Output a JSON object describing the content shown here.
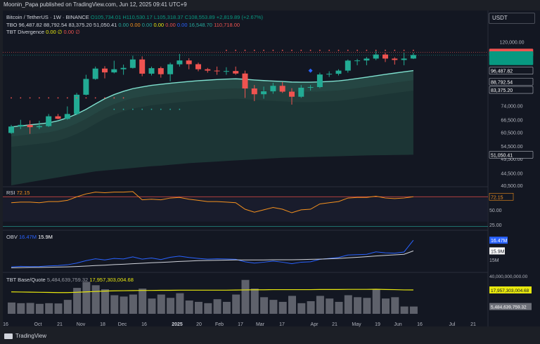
{
  "header": {
    "published": "Moonin_Papa published on TradingView.com, Jun 12, 2025 09:41 UTC+9"
  },
  "currency_button": "USDT",
  "legend": {
    "symbol": "Bitcoin / TetherUS · 1W · BINANCE",
    "o": "O105,734.01",
    "h": "H110,530.17",
    "l": "L105,318.37",
    "c": "C108,553.89",
    "chg": "+2,819.89 (+2.67%)",
    "tbo_name": "TBO",
    "tbo_vals": [
      "96,487.82",
      "88,792.54",
      "83,375.20",
      "51,050.41",
      "0.00",
      "0.00",
      "0.00",
      "0.00",
      "0.00",
      "0.00",
      "16,548.70",
      "110,718.00"
    ],
    "div_name": "TBT Divergence",
    "div_vals": [
      "0.00",
      "∅",
      "0.00",
      "∅"
    ],
    "rsi_name": "RSI",
    "rsi_val": "72.15",
    "obv_name": "OBV",
    "obv_val1": "16.47M",
    "obv_val2": "15.9M",
    "bq_name": "TBT Base/Quote",
    "bq_val1": "5,484,639,759.32",
    "bq_val2": "17,957,303,004.68"
  },
  "colors": {
    "up": "#26a69a",
    "down": "#ef5350",
    "upfill": "#22ab94",
    "ma": "#7fe0cf",
    "rsi": "#f5911e",
    "obv": "#2962ff",
    "obv_ma": "#d1d4dc",
    "bq": "#e8e80e",
    "vol": "#6c6f78"
  },
  "price_axis": [
    "120,000.00",
    "74,000.00",
    "66,500.00",
    "60,500.00",
    "54,500.00",
    "49,500.00",
    "44,500.00",
    "40,500.00"
  ],
  "price_labels": [
    {
      "text": "110,718.00",
      "color": "#ef5350"
    },
    {
      "text": "108,553.89",
      "color": "#089981"
    },
    {
      "text": "4d 0h",
      "color": "#089981"
    },
    {
      "text": "96,487.82",
      "color": "#ffffff"
    },
    {
      "text": "88,792.54",
      "color": "#ffffff"
    },
    {
      "text": "83,375.20",
      "color": "#ffffff"
    },
    {
      "text": "51,050.41",
      "color": "#ffffff"
    }
  ],
  "rsi_axis": [
    "72.15",
    "50.00",
    "25.00"
  ],
  "obv_axis": [
    "16.47M",
    "15.9M",
    "15M"
  ],
  "bq_axis": [
    "40,000,000,000.00",
    "17,957,303,004.68",
    "5,484,639,759.32"
  ],
  "x_axis": [
    "16",
    "Oct",
    "21",
    "Nov",
    "18",
    "Dec",
    "16",
    "2025",
    "20",
    "Feb",
    "17",
    "Mar",
    "17",
    "Apr",
    "21",
    "May",
    "19",
    "Jun",
    "16",
    "Jul",
    "21"
  ],
  "branding": "TradingView",
  "chart_data": {
    "type": "candlestick",
    "interval": "1W",
    "log_scale": true,
    "candles": [
      [
        60200,
        64000,
        59800,
        63200
      ],
      [
        63200,
        66500,
        62000,
        64000
      ],
      [
        64000,
        66200,
        59800,
        62900
      ],
      [
        62900,
        66000,
        62000,
        63400
      ],
      [
        63400,
        69500,
        63000,
        68300
      ],
      [
        68300,
        69500,
        66800,
        67000
      ],
      [
        67000,
        73600,
        66500,
        69500
      ],
      [
        69500,
        81500,
        69000,
        80400
      ],
      [
        80400,
        93500,
        80000,
        90600
      ],
      [
        90600,
        99500,
        90000,
        98000
      ],
      [
        98000,
        99800,
        91000,
        95200
      ],
      [
        95200,
        104000,
        94500,
        97500
      ],
      [
        97500,
        101000,
        93500,
        98500
      ],
      [
        98500,
        108000,
        98000,
        105000
      ],
      [
        105000,
        107500,
        92500,
        94300
      ],
      [
        94300,
        99500,
        93000,
        98300
      ],
      [
        98300,
        99500,
        91500,
        93900
      ],
      [
        93900,
        102500,
        89000,
        101200
      ],
      [
        101200,
        109500,
        99500,
        104200
      ],
      [
        104200,
        106000,
        97500,
        101300
      ],
      [
        101300,
        102500,
        96000,
        97500
      ],
      [
        97500,
        98500,
        95000,
        96500
      ],
      [
        96500,
        99500,
        93500,
        96100
      ],
      [
        96100,
        99000,
        93500,
        96200
      ],
      [
        96200,
        99500,
        93500,
        94400
      ],
      [
        94400,
        96500,
        78500,
        84300
      ],
      [
        84300,
        86500,
        76600,
        80700
      ],
      [
        80700,
        85500,
        78000,
        82500
      ],
      [
        82500,
        88000,
        81000,
        86000
      ],
      [
        86000,
        88500,
        81500,
        82300
      ],
      [
        82300,
        84500,
        74600,
        79200
      ],
      [
        79200,
        86500,
        78500,
        84800
      ],
      [
        84800,
        86500,
        83000,
        85200
      ],
      [
        85200,
        95000,
        84500,
        93700
      ],
      [
        93700,
        96000,
        92000,
        94200
      ],
      [
        94200,
        97500,
        93000,
        96500
      ],
      [
        96500,
        105000,
        95000,
        104100
      ],
      [
        104100,
        105500,
        100500,
        104200
      ],
      [
        104200,
        107000,
        100500,
        105700
      ],
      [
        105700,
        111900,
        104500,
        109000
      ],
      [
        109000,
        110500,
        103000,
        105700
      ],
      [
        105700,
        106800,
        101000,
        104600
      ],
      [
        104600,
        110400,
        100500,
        105700
      ],
      [
        105734,
        110530,
        105318,
        108554
      ]
    ],
    "tbo_fast": [
      63000,
      63500,
      64000,
      64500,
      65000,
      66000,
      67500,
      69500,
      72000,
      75000,
      78000,
      80500,
      82500,
      84200,
      85300,
      86300,
      87000,
      87700,
      88300,
      88900,
      89400,
      89800,
      90200,
      90500,
      90700,
      90400,
      89900,
      89500,
      89200,
      88900,
      88500,
      88400,
      88400,
      88600,
      88900,
      89300,
      90000,
      90900,
      91800,
      92800,
      93800,
      94700,
      95600,
      96487
    ],
    "band_low": [
      40500,
      41000,
      41500,
      42000,
      42500,
      43000,
      43500,
      44000,
      44500,
      45000,
      45300,
      45600,
      45900,
      46200,
      46500,
      46800,
      47000,
      47300,
      47600,
      47900,
      48100,
      48300,
      48500,
      48700,
      48900,
      49100,
      49300,
      49500,
      49700,
      49900,
      50000,
      50100,
      50200,
      50300,
      50400,
      50500,
      50600,
      50700,
      50800,
      50850,
      50900,
      50950,
      51000,
      51050
    ],
    "rsi": [
      62,
      63,
      63,
      62,
      64,
      64,
      66,
      72,
      77,
      80,
      79,
      80,
      80,
      81,
      67,
      68,
      67,
      70,
      71,
      68,
      66,
      64,
      64,
      63,
      62,
      51,
      46,
      50,
      54,
      51,
      45,
      50,
      51,
      60,
      62,
      64,
      70,
      71,
      71,
      73,
      70,
      69,
      70,
      72.15
    ],
    "obv_m": [
      15.05,
      15.08,
      15.06,
      15.07,
      15.1,
      15.12,
      15.16,
      15.25,
      15.38,
      15.48,
      15.42,
      15.5,
      15.47,
      15.58,
      15.46,
      15.52,
      15.44,
      15.56,
      15.62,
      15.55,
      15.5,
      15.46,
      15.48,
      15.47,
      15.45,
      15.32,
      15.25,
      15.3,
      15.36,
      15.3,
      15.22,
      15.3,
      15.32,
      15.45,
      15.5,
      15.55,
      15.68,
      15.7,
      15.72,
      15.85,
      15.8,
      15.78,
      15.84,
      16.47
    ],
    "obv_ma_m": [
      15.0,
      15.01,
      15.02,
      15.02,
      15.03,
      15.04,
      15.05,
      15.07,
      15.09,
      15.12,
      15.14,
      15.17,
      15.19,
      15.22,
      15.24,
      15.27,
      15.29,
      15.31,
      15.34,
      15.36,
      15.38,
      15.39,
      15.4,
      15.41,
      15.42,
      15.42,
      15.42,
      15.42,
      15.43,
      15.43,
      15.43,
      15.44,
      15.45,
      15.46,
      15.48,
      15.5,
      15.53,
      15.56,
      15.59,
      15.63,
      15.66,
      15.69,
      15.72,
      15.9
    ],
    "base_quote_b": [
      8.5,
      8.0,
      8.2,
      7.5,
      8.0,
      7.8,
      10.5,
      19.5,
      24.0,
      21.5,
      18.5,
      14.0,
      13.0,
      14.5,
      19.0,
      11.5,
      14.5,
      12.0,
      15.5,
      10.0,
      9.0,
      8.0,
      11.0,
      9.0,
      14.5,
      25.5,
      19.0,
      12.5,
      10.5,
      9.0,
      13.5,
      8.0,
      9.5,
      13.5,
      11.5,
      9.0,
      14.0,
      12.5,
      12.0,
      18.5,
      11.5,
      12.5,
      5.5,
      5.48
    ],
    "base_quote_ma_b": [
      16.5,
      16.4,
      16.3,
      16.2,
      16.1,
      16.0,
      16.0,
      16.2,
      16.5,
      16.8,
      17.1,
      17.3,
      17.4,
      17.5,
      17.6,
      17.6,
      17.7,
      17.7,
      17.8,
      17.8,
      17.8,
      17.8,
      17.8,
      17.8,
      17.9,
      18.0,
      18.1,
      18.1,
      18.2,
      18.2,
      18.2,
      18.2,
      18.2,
      18.3,
      18.3,
      18.3,
      18.4,
      18.4,
      18.4,
      18.5,
      18.3,
      18.2,
      18.0,
      17.96
    ]
  }
}
